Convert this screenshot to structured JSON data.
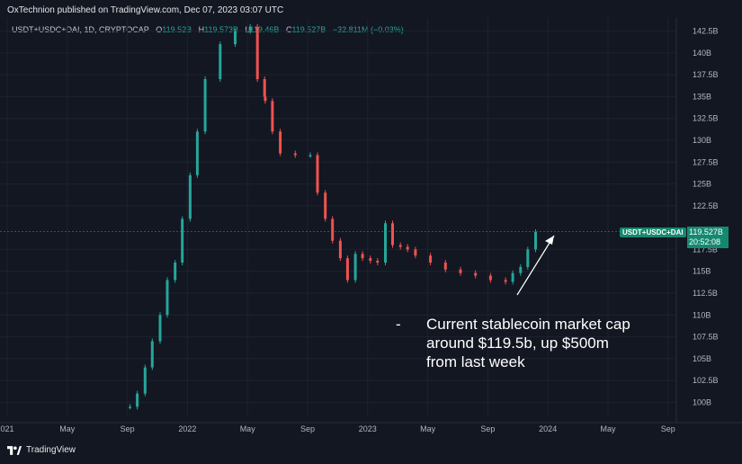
{
  "header": {
    "publisher_line": "OxTechnion published on TradingView.com, Dec 07, 2023 03:07 UTC"
  },
  "legend": {
    "symbol": "USDT+USDC+DAI, 1D, CRYPTOCAP",
    "o_label": "O",
    "o_value": "119.52B",
    "h_label": "H",
    "h_value": "119.573B",
    "l_label": "L",
    "l_value": "119.46B",
    "c_label": "C",
    "c_value": "119.527B",
    "change": "−32.811M (−0.03%)"
  },
  "price_tag": {
    "symbol": "USDT+USDC+DAI",
    "price": "119.527B",
    "countdown": "20:52:08"
  },
  "annotation": {
    "bullet": "-",
    "text": "Current stablecoin market cap around $119.5b, up $500m from last week"
  },
  "footer": {
    "brand": "TradingView"
  },
  "colors": {
    "background": "#131722",
    "up": "#26a69a",
    "down": "#ef5350",
    "tag": "#15896f",
    "grid": "#1e2230"
  },
  "chart_data": {
    "type": "candlestick",
    "title": "",
    "y_axis": {
      "ticks": [
        "142.5B",
        "140B",
        "137.5B",
        "135B",
        "132.5B",
        "130B",
        "127.5B",
        "125B",
        "122.5B",
        "117.5B",
        "115B",
        "112.5B",
        "110B",
        "107.5B",
        "105B",
        "102.5B",
        "100B"
      ],
      "range": [
        98.5,
        144
      ]
    },
    "x_axis": {
      "ticks": [
        "021",
        "May",
        "Sep",
        "2022",
        "May",
        "Sep",
        "2023",
        "May",
        "Sep",
        "2024",
        "May",
        "Sep"
      ]
    },
    "last_price": 119.527,
    "series": [
      {
        "name": "USDT+USDC+DAI",
        "x": [
          "2021-09",
          "2021-09",
          "2021-10",
          "2021-10",
          "2021-11",
          "2021-11",
          "2021-12",
          "2021-12",
          "2022-01",
          "2022-01",
          "2022-02",
          "2022-03",
          "2022-04",
          "2022-05",
          "2022-05",
          "2022-05",
          "2022-06",
          "2022-06",
          "2022-07",
          "2022-08",
          "2022-09",
          "2022-09",
          "2022-10",
          "2022-10",
          "2022-11",
          "2022-11",
          "2022-12",
          "2022-12",
          "2023-01",
          "2023-01",
          "2023-02",
          "2023-02",
          "2023-03",
          "2023-03",
          "2023-04",
          "2023-05",
          "2023-06",
          "2023-07",
          "2023-08",
          "2023-09",
          "2023-10",
          "2023-10",
          "2023-11",
          "2023-11",
          "2023-12"
        ],
        "values": [
          99.5,
          101,
          104,
          107,
          110,
          114,
          116,
          121,
          126,
          131,
          137,
          141,
          142.5,
          143,
          137,
          135,
          134.5,
          131,
          128.5,
          128.3,
          128.3,
          124,
          121,
          118.5,
          116.5,
          114,
          117,
          116.5,
          116.2,
          116,
          120.5,
          118,
          117.8,
          117.5,
          116.8,
          116,
          115.2,
          114.8,
          114.5,
          114,
          113.8,
          114.8,
          115.5,
          117.5,
          119.5
        ]
      }
    ]
  }
}
